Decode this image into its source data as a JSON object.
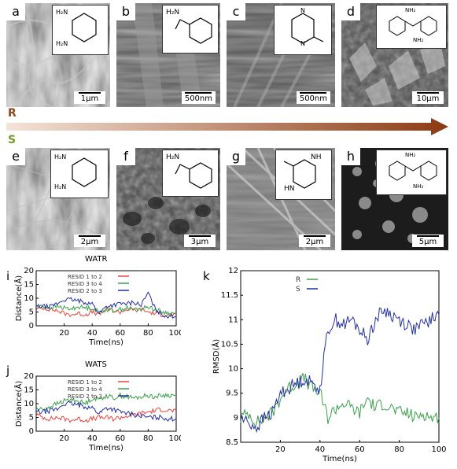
{
  "labels": [
    "a",
    "b",
    "c",
    "d",
    "e",
    "f",
    "g",
    "h",
    "i",
    "j",
    "k"
  ],
  "scalebars": {
    "a": "1μm",
    "b": "500nm",
    "c": "500nm",
    "d": "10μm",
    "e": "2μm",
    "f": "3μm",
    "g": "2μm",
    "h": "5μm"
  },
  "molecules": {
    "a": {
      "nh2_top": "H₂N",
      "nh2_bot": "H₂N"
    },
    "b": {
      "nh2": "H₂N"
    },
    "c": {
      "nh_top": "N",
      "nh_bot": "N",
      "h_top": "H",
      "h_bot": "H"
    },
    "d": {
      "nh3a": "NH₂",
      "nh3b": "NH₂"
    },
    "e": {
      "nh2_top": "H₂N",
      "nh2_bot": "H₂N"
    },
    "f": {
      "nh2": "H₂N"
    },
    "g": {
      "nh_top": "NH",
      "nh_bot": "HN"
    },
    "h": {
      "nh3a": "NH₂",
      "nh3b": "NH₂"
    }
  },
  "rs": {
    "R": "R",
    "S": "S",
    "r_color": "#8b4a1e",
    "s_color": "#7a9a2e"
  },
  "plot_titles": {
    "i": "WATR",
    "j": "WATS"
  },
  "chart_data": [
    {
      "type": "line",
      "panel": "i",
      "title": "WATR",
      "xlabel": "Time(ns)",
      "ylabel": "Distance(Å)",
      "xlim": [
        0,
        100
      ],
      "ylim": [
        0,
        20
      ],
      "xticks": [
        20,
        40,
        60,
        80,
        100
      ],
      "yticks": [
        0,
        5,
        10,
        15,
        20
      ],
      "legend": "top-center",
      "series": [
        {
          "name": "RESID 1 to 2",
          "color": "#e8453c",
          "x": [
            0,
            5,
            10,
            15,
            20,
            25,
            30,
            35,
            40,
            45,
            50,
            55,
            60,
            65,
            70,
            75,
            80,
            85,
            90,
            95,
            100
          ],
          "values": [
            6,
            6.5,
            6,
            5.5,
            4.5,
            4,
            4.5,
            4,
            5,
            4,
            6,
            5.5,
            5,
            6,
            5.5,
            6,
            5,
            4.5,
            4,
            4,
            4
          ]
        },
        {
          "name": "RESID 3 to 4",
          "color": "#3aa04a",
          "x": [
            0,
            5,
            10,
            15,
            20,
            25,
            30,
            35,
            40,
            45,
            50,
            55,
            60,
            65,
            70,
            75,
            80,
            85,
            90,
            95,
            100
          ],
          "values": [
            7,
            7,
            6.5,
            7,
            6.5,
            6,
            7,
            6.5,
            6.5,
            5,
            6,
            5.5,
            6,
            6.5,
            6,
            6,
            7,
            6,
            5,
            4.5,
            4.5
          ]
        },
        {
          "name": "RESID 2 to 3",
          "color": "#2431a0",
          "x": [
            0,
            5,
            10,
            15,
            20,
            25,
            30,
            35,
            40,
            45,
            50,
            55,
            60,
            65,
            70,
            75,
            80,
            85,
            90,
            95,
            100
          ],
          "values": [
            7,
            7,
            7,
            8,
            9.5,
            9.5,
            9,
            8.5,
            8,
            4.5,
            7,
            7.5,
            8,
            8,
            8.5,
            7.5,
            12,
            6,
            4,
            3.5,
            3.5
          ]
        }
      ]
    },
    {
      "type": "line",
      "panel": "j",
      "title": "WATS",
      "xlabel": "Time(ns)",
      "ylabel": "Distance(Å)",
      "xlim": [
        0,
        100
      ],
      "ylim": [
        0,
        20
      ],
      "xticks": [
        20,
        40,
        60,
        80,
        100
      ],
      "yticks": [
        0,
        5,
        10,
        15,
        20
      ],
      "legend": "top-center",
      "series": [
        {
          "name": "RESID 1 to 2",
          "color": "#e8453c",
          "x": [
            0,
            5,
            10,
            15,
            20,
            25,
            30,
            35,
            40,
            45,
            50,
            55,
            60,
            65,
            70,
            75,
            80,
            85,
            90,
            95,
            100
          ],
          "values": [
            6,
            5,
            4.5,
            5,
            4.5,
            4,
            4.5,
            4,
            4.5,
            5,
            5,
            4.5,
            5,
            5.5,
            6,
            6.5,
            7,
            7.5,
            8,
            7.5,
            7.5
          ]
        },
        {
          "name": "RESID 3 to 4",
          "color": "#3aa04a",
          "x": [
            0,
            5,
            10,
            15,
            20,
            25,
            30,
            35,
            40,
            45,
            50,
            55,
            60,
            65,
            70,
            75,
            80,
            85,
            90,
            95,
            100
          ],
          "values": [
            8,
            8,
            9,
            10,
            11,
            11.5,
            11,
            10,
            12,
            11.5,
            13,
            12,
            13,
            12.5,
            12,
            12.5,
            13,
            12.5,
            13,
            13,
            13
          ]
        },
        {
          "name": "RESID 2 to 3",
          "color": "#2431a0",
          "x": [
            0,
            5,
            10,
            15,
            20,
            25,
            30,
            35,
            40,
            45,
            50,
            55,
            60,
            65,
            70,
            75,
            80,
            85,
            90,
            95,
            100
          ],
          "values": [
            7,
            7,
            7.5,
            8,
            10,
            10,
            9.5,
            9,
            8.5,
            6.5,
            8.5,
            8,
            7,
            6.5,
            6,
            5.5,
            5,
            5,
            5,
            4.5,
            4.5
          ]
        }
      ]
    },
    {
      "type": "line",
      "panel": "k",
      "xlabel": "Time(ns)",
      "ylabel": "RMSD(Å)",
      "xlim": [
        0,
        100
      ],
      "ylim": [
        8.5,
        12
      ],
      "xticks": [
        20,
        40,
        60,
        80,
        100
      ],
      "yticks": [
        8.5,
        9,
        9.5,
        10,
        10.5,
        11,
        11.5,
        12
      ],
      "legend": "top-left",
      "series": [
        {
          "name": "R",
          "color": "#3aa04a",
          "x": [
            0,
            4,
            8,
            12,
            16,
            20,
            24,
            28,
            32,
            36,
            40,
            44,
            48,
            52,
            56,
            60,
            64,
            68,
            72,
            76,
            80,
            84,
            88,
            92,
            96,
            100
          ],
          "values": [
            9.0,
            9.1,
            8.9,
            9.0,
            9.1,
            9.4,
            9.6,
            9.7,
            9.8,
            9.6,
            9.5,
            9.0,
            9.2,
            9.3,
            9.2,
            9.1,
            9.4,
            9.2,
            9.3,
            9.2,
            9.1,
            9.1,
            9.0,
            9.1,
            9.0,
            9.0
          ]
        },
        {
          "name": "S",
          "color": "#2431a0",
          "x": [
            0,
            4,
            8,
            12,
            16,
            20,
            24,
            28,
            32,
            36,
            40,
            44,
            48,
            52,
            56,
            60,
            64,
            68,
            72,
            76,
            80,
            84,
            88,
            92,
            96,
            100
          ],
          "values": [
            9.0,
            8.9,
            8.8,
            9.0,
            9.1,
            9.5,
            9.6,
            9.7,
            9.8,
            9.7,
            9.6,
            10.8,
            11.0,
            10.9,
            11.0,
            10.8,
            10.6,
            11.0,
            11.2,
            11.1,
            11.0,
            10.9,
            10.8,
            10.9,
            11.0,
            11.1
          ]
        }
      ]
    }
  ]
}
